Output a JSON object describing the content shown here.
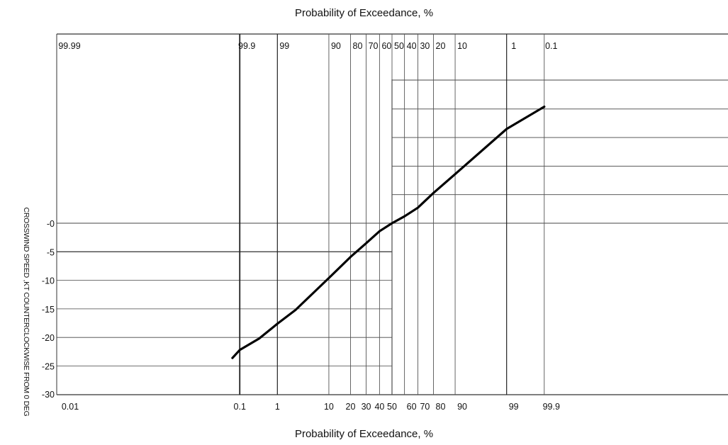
{
  "chart_data": {
    "type": "line",
    "title": "",
    "x_scale": "normal-probability",
    "top_axis": {
      "label": "Probability of Exceedance, %",
      "ticks": [
        "99.99",
        "99.9",
        "99",
        "90",
        "80",
        "70",
        "60",
        "50",
        "40",
        "30",
        "20",
        "10",
        "1",
        "0.1"
      ]
    },
    "bottom_axis": {
      "label": "Probability of Exceedance, %",
      "ticks_left_panel": [
        "0.01",
        "0.1",
        "1",
        "10",
        "20",
        "30",
        "40",
        "50"
      ],
      "ticks_right_panel": [
        "50",
        "60",
        "70",
        "80",
        "90",
        "99",
        "99.9"
      ]
    },
    "y_axis": {
      "label": "CROSSWIND SPEED ,KT  COUNTERCLOCKWISE FROM 0 DEG",
      "ticks": [
        "-0",
        "-5",
        "-10",
        "-15",
        "-20",
        "-25",
        "-30"
      ],
      "ylim": [
        -30,
        0
      ]
    },
    "grid": true,
    "series": [
      {
        "points_left_panel": [
          {
            "x": 0.06,
            "y": -23.6
          },
          {
            "x": 0.1,
            "y": -22.2
          },
          {
            "x": 0.35,
            "y": -20.2
          },
          {
            "x": 1,
            "y": -17.6
          },
          {
            "x": 2.5,
            "y": -15.2
          },
          {
            "x": 10,
            "y": -9.6
          },
          {
            "x": 20,
            "y": -5.9
          },
          {
            "x": 30,
            "y": -3.5
          },
          {
            "x": 40,
            "y": -1.4
          },
          {
            "x": 50,
            "y": 0
          }
        ],
        "points_right_panel_bottom_scale": [
          {
            "x": 50,
            "y": 0
          },
          {
            "x": 60,
            "y": 1.2
          },
          {
            "x": 70,
            "y": 2.7
          },
          {
            "x": 80,
            "y": 5.3
          },
          {
            "x": 90,
            "y": 8.6
          },
          {
            "x": 99,
            "y": 16.5
          },
          {
            "x": 99.9,
            "y": 20.4
          }
        ]
      }
    ]
  }
}
